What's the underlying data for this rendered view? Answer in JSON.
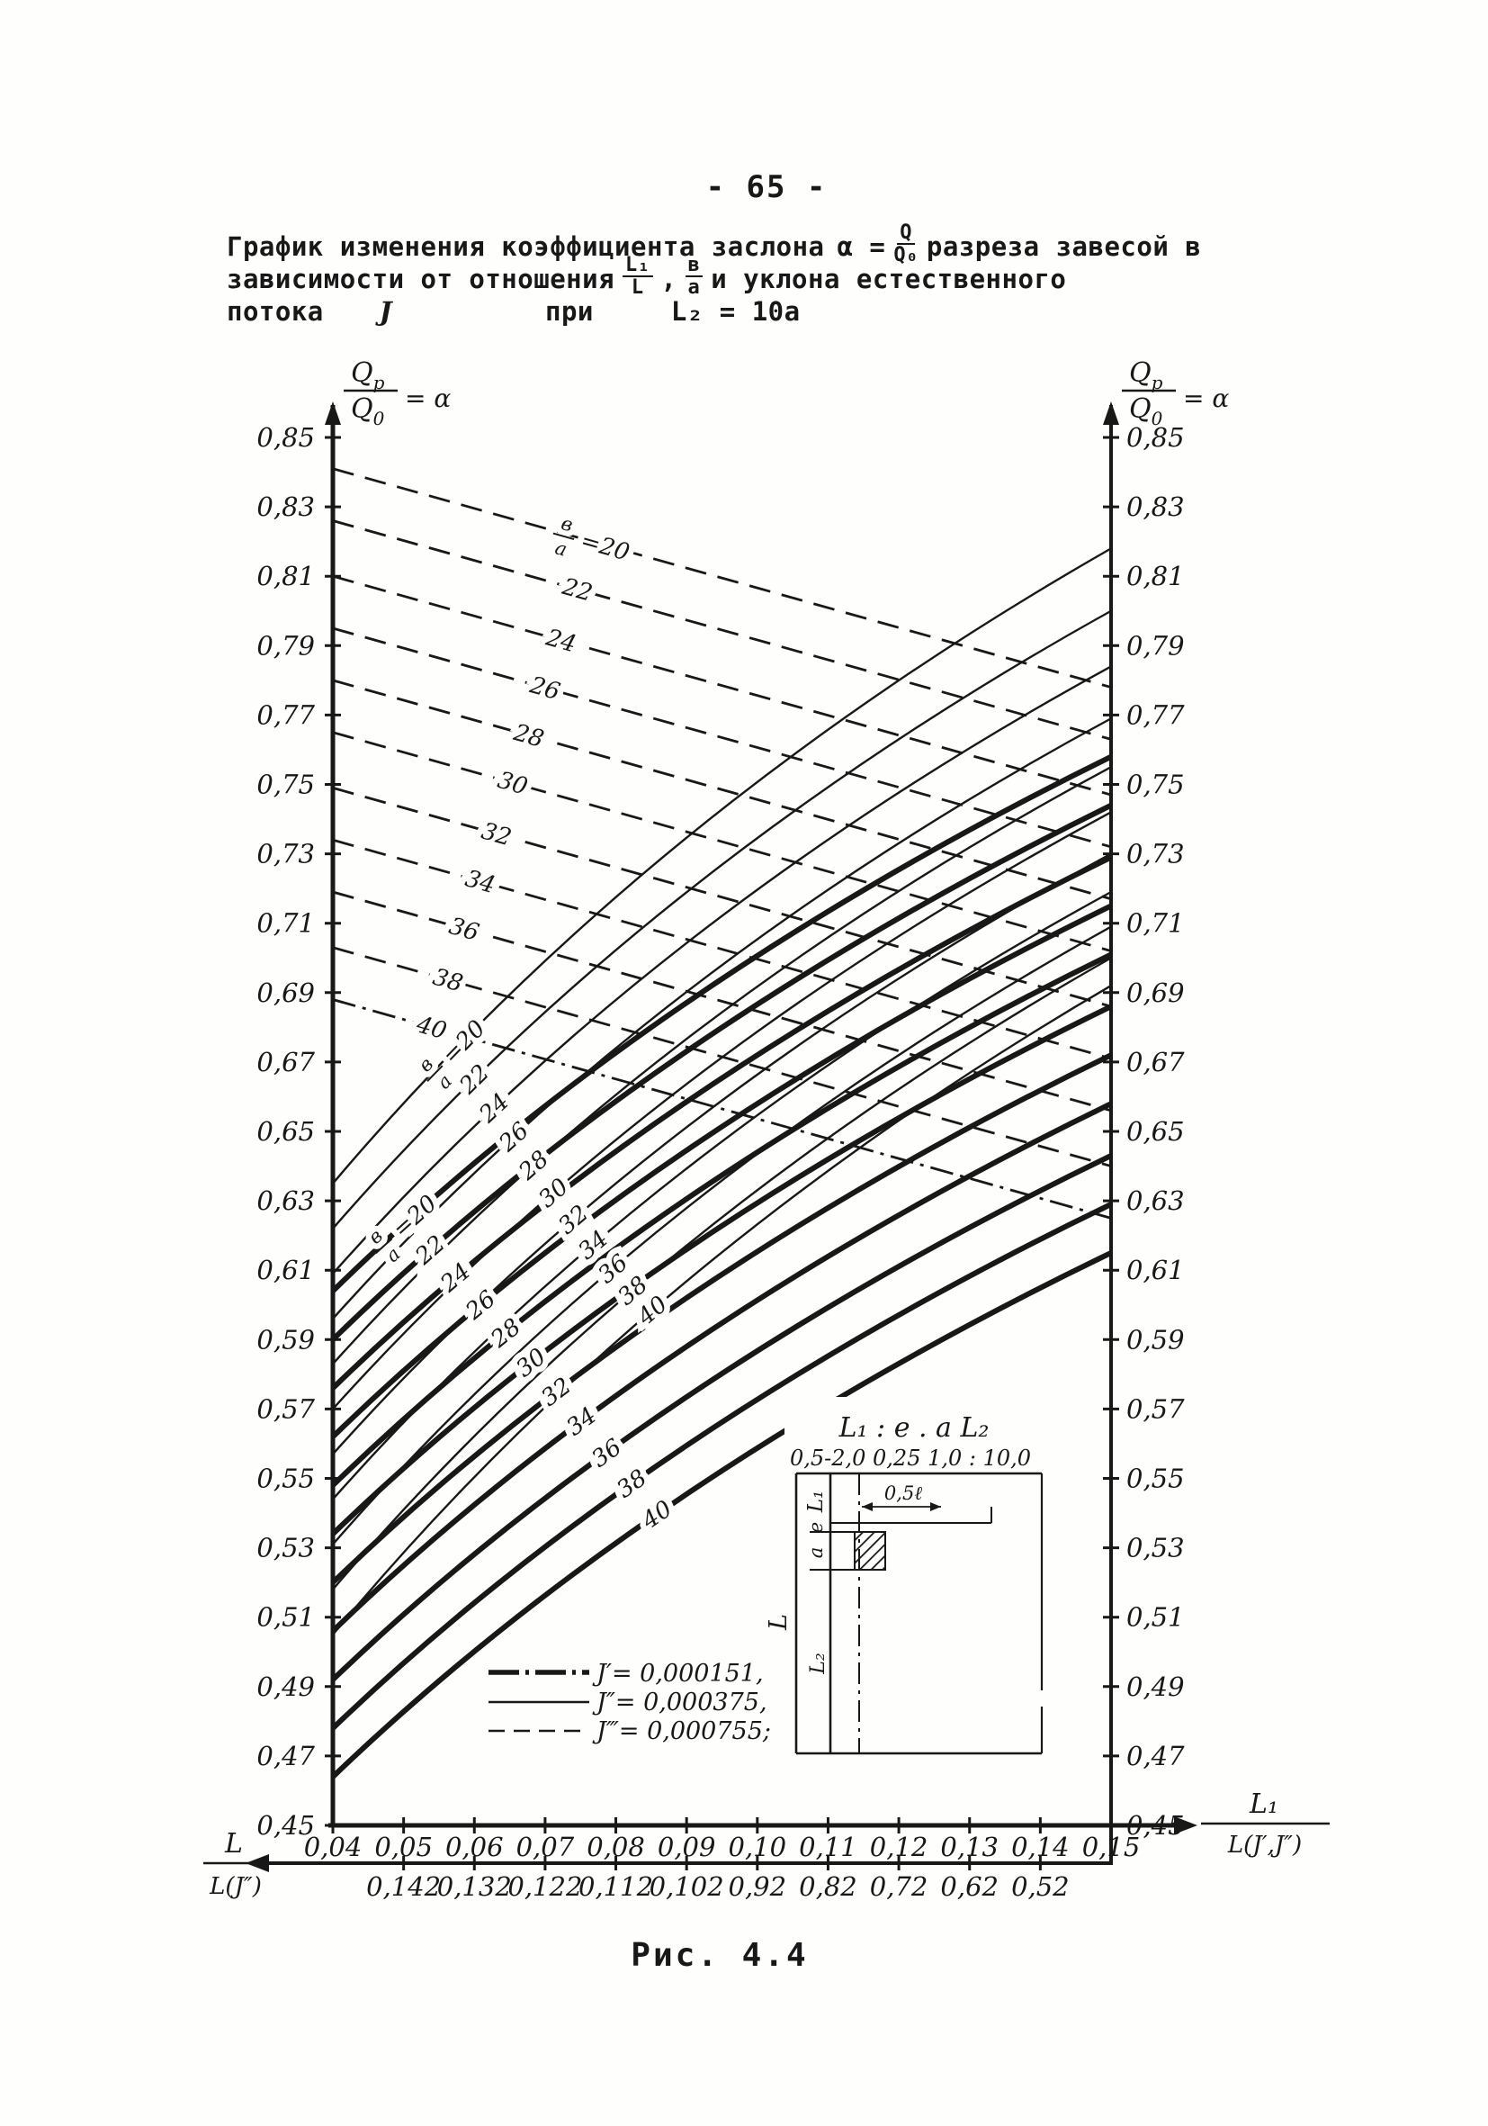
{
  "page": {
    "number": "- 65 -",
    "caption": "Рис. 4.4"
  },
  "title": {
    "line1_text": "График изменения коэффициента заслона",
    "alpha_eq": "α =",
    "q_frac": {
      "num": "Q",
      "den": "Q₀"
    },
    "line1_end": "разреза завесой в",
    "line2_text": "зависимости от отношения",
    "l_frac": {
      "num": "L₁",
      "den": "L"
    },
    "comma": ",",
    "ba_frac": {
      "num": "в",
      "den": "а"
    },
    "line2_end": "и уклона естественного",
    "line3_word1": "потока",
    "line3_j": "J",
    "line3_word2": "при",
    "line3_eq": "L₂ = 10а"
  },
  "axes": {
    "y_header_left": {
      "num": "Q",
      "num_sub": "p",
      "den": "Q",
      "den_sub": "0",
      "eq": "= α"
    },
    "y_header_right": {
      "num": "Q",
      "num_sub": "p",
      "den": "Q",
      "den_sub": "0",
      "eq": "= α"
    },
    "x_label_right": {
      "num": "L₁",
      "den": "L(J′,J″)"
    },
    "x2_label_left": {
      "num": "L",
      "den": "L(J″)"
    }
  },
  "legend": {
    "items": [
      {
        "style": "thick",
        "label": "J′= 0,000151,"
      },
      {
        "style": "thin",
        "label": "J″= 0,000375,"
      },
      {
        "style": "dashed",
        "label": "J‴= 0,000755;"
      }
    ]
  },
  "inset": {
    "header": "L₁ : e . a   L₂",
    "values": "0,5-2,0  0,25   1,0 : 10,0",
    "dim": "0,5ℓ",
    "lab_l1": "L₁",
    "lab_e": "e",
    "lab_a": "a",
    "lab_L": "L",
    "lab_L2": "L₂"
  },
  "chart_data": {
    "type": "line",
    "title": "Рис. 4.4",
    "x_axis": {
      "range": [
        0.04,
        0.15
      ],
      "step": 0.01,
      "arrow_label": "L₁/L(J′,J″)",
      "tick_labels": [
        "0,04",
        "0,05",
        "0,06",
        "0,07",
        "0,08",
        "0,09",
        "0,10",
        "0,11",
        "0,12",
        "0,13",
        "0,14",
        "0,15"
      ]
    },
    "x2_axis": {
      "first_position": 0.05,
      "step": 0.01,
      "arrow_label": "L/L(J″)",
      "tick_labels": [
        "0,142",
        "0,132",
        "0,122",
        "0,112",
        "0,102",
        "0,92",
        "0,82",
        "0,72",
        "0,62",
        "0,52"
      ]
    },
    "y_axis": {
      "range": [
        0.45,
        0.85
      ],
      "step": 0.02,
      "label": "Qp/Q0 = α",
      "tick_labels": [
        "0,85",
        "0,83",
        "0,81",
        "0,79",
        "0,77",
        "0,75",
        "0,73",
        "0,71",
        "0,69",
        "0,67",
        "0,65",
        "0,63",
        "0,61",
        "0,59",
        "0,57",
        "0,55",
        "0,53",
        "0,51",
        "0,49",
        "0,47",
        "0,45"
      ]
    },
    "families": [
      {
        "name": "J′ = 0,000151",
        "style": "thick",
        "prefix_num": "в",
        "prefix_den": "а",
        "prefix_eq": "=20",
        "labels": [
          "20",
          "22",
          "24",
          "26",
          "28",
          "30",
          "32",
          "34",
          "36",
          "38",
          "40"
        ],
        "b_a": [
          2.0,
          2.2,
          2.4,
          2.6,
          2.8,
          3.0,
          3.2,
          3.4,
          3.6,
          3.8,
          4.0
        ],
        "alpha_left": [
          0.604,
          0.59,
          0.576,
          0.562,
          0.548,
          0.534,
          0.52,
          0.506,
          0.492,
          0.478,
          0.464
        ],
        "alpha_right": [
          0.758,
          0.744,
          0.729,
          0.715,
          0.701,
          0.686,
          0.672,
          0.658,
          0.643,
          0.629,
          0.615
        ]
      },
      {
        "name": "J″ = 0,000375",
        "style": "thin",
        "prefix_num": "в",
        "prefix_den": "а",
        "prefix_eq": "=20",
        "labels": [
          "20",
          "22",
          "24",
          "26",
          "28",
          "30",
          "32",
          "34",
          "36",
          "38",
          "40"
        ],
        "b_a": [
          2.0,
          2.2,
          2.4,
          2.6,
          2.8,
          3.0,
          3.2,
          3.4,
          3.6,
          3.8,
          4.0
        ],
        "alpha_left": [
          0.635,
          0.622,
          0.609,
          0.596,
          0.583,
          0.57,
          0.557,
          0.544,
          0.531,
          0.518,
          0.505
        ],
        "alpha_right": [
          0.818,
          0.8,
          0.784,
          0.769,
          0.755,
          0.742,
          0.73,
          0.719,
          0.709,
          0.7,
          0.692
        ]
      },
      {
        "name": "J‴ = 0,000755",
        "style": "dashed",
        "prefix_num": "в",
        "prefix_den": "а",
        "prefix_eq": "=20",
        "labels": [
          "20",
          "22",
          "24",
          "26",
          "28",
          "30",
          "32",
          "34",
          "36",
          "38",
          "40"
        ],
        "b_a": [
          2.0,
          2.2,
          2.4,
          2.6,
          2.8,
          3.0,
          3.2,
          3.4,
          3.6,
          3.8,
          4.0
        ],
        "alpha_left": [
          0.841,
          0.826,
          0.81,
          0.795,
          0.78,
          0.765,
          0.749,
          0.734,
          0.719,
          0.703,
          0.688
        ],
        "alpha_right": [
          0.778,
          0.763,
          0.747,
          0.732,
          0.717,
          0.702,
          0.686,
          0.671,
          0.656,
          0.64,
          0.625
        ]
      }
    ]
  }
}
